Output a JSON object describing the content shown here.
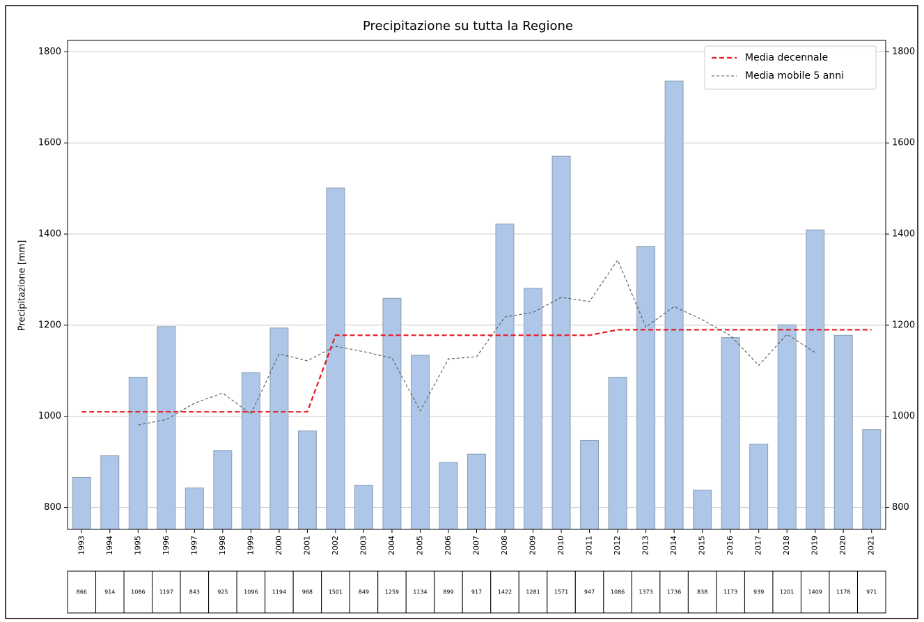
{
  "chart_data": {
    "type": "bar",
    "title": "Precipitazione su tutta la Regione",
    "y_label": "Precipitazione [mm]",
    "categories": [
      "1993",
      "1994",
      "1995",
      "1996",
      "1997",
      "1998",
      "1999",
      "2000",
      "2001",
      "2002",
      "2003",
      "2004",
      "2005",
      "2006",
      "2007",
      "2008",
      "2009",
      "2010",
      "2011",
      "2012",
      "2013",
      "2014",
      "2015",
      "2016",
      "2017",
      "2018",
      "2019",
      "2020",
      "2021"
    ],
    "values": [
      866,
      914,
      1086,
      1197,
      843,
      925,
      1096,
      1194,
      968,
      1501,
      849,
      1259,
      1134,
      899,
      917,
      1422,
      1281,
      1571,
      947,
      1086,
      1373,
      1736,
      838,
      1173,
      939,
      1201,
      1409,
      1178,
      971
    ],
    "color": "#aec7e8",
    "series": [
      {
        "name": "Media decennale",
        "color": "#e8161b",
        "values": [
          1010,
          1010,
          1010,
          1010,
          1010,
          1010,
          1010,
          1010,
          1010,
          1178,
          1178,
          1178,
          1178,
          1178,
          1178,
          1178,
          1178,
          1178,
          1178,
          1190,
          1190,
          1190,
          1190,
          1190,
          1190,
          1190,
          1190,
          1190,
          1190
        ]
      },
      {
        "name": "Media mobile 5 anni",
        "color": "#555555",
        "values": [
          null,
          null,
          981,
          993,
          1029,
          1051,
          1005,
          1137,
          1122,
          1154,
          1142,
          1128,
          1012,
          1126,
          1131,
          1218,
          1228,
          1261,
          1252,
          1343,
          1196,
          1241,
          1212,
          1177,
          1112,
          1180,
          1140,
          null,
          null
        ]
      }
    ],
    "ylim": [
      752,
      1825
    ],
    "yticks": [
      800,
      1000,
      1200,
      1400,
      1600,
      1800
    ],
    "y2lim": [
      752,
      1825
    ],
    "y2ticks": [
      800,
      1000,
      1200,
      1400,
      1600,
      1800
    ],
    "grid": true,
    "legend": "upper right"
  }
}
